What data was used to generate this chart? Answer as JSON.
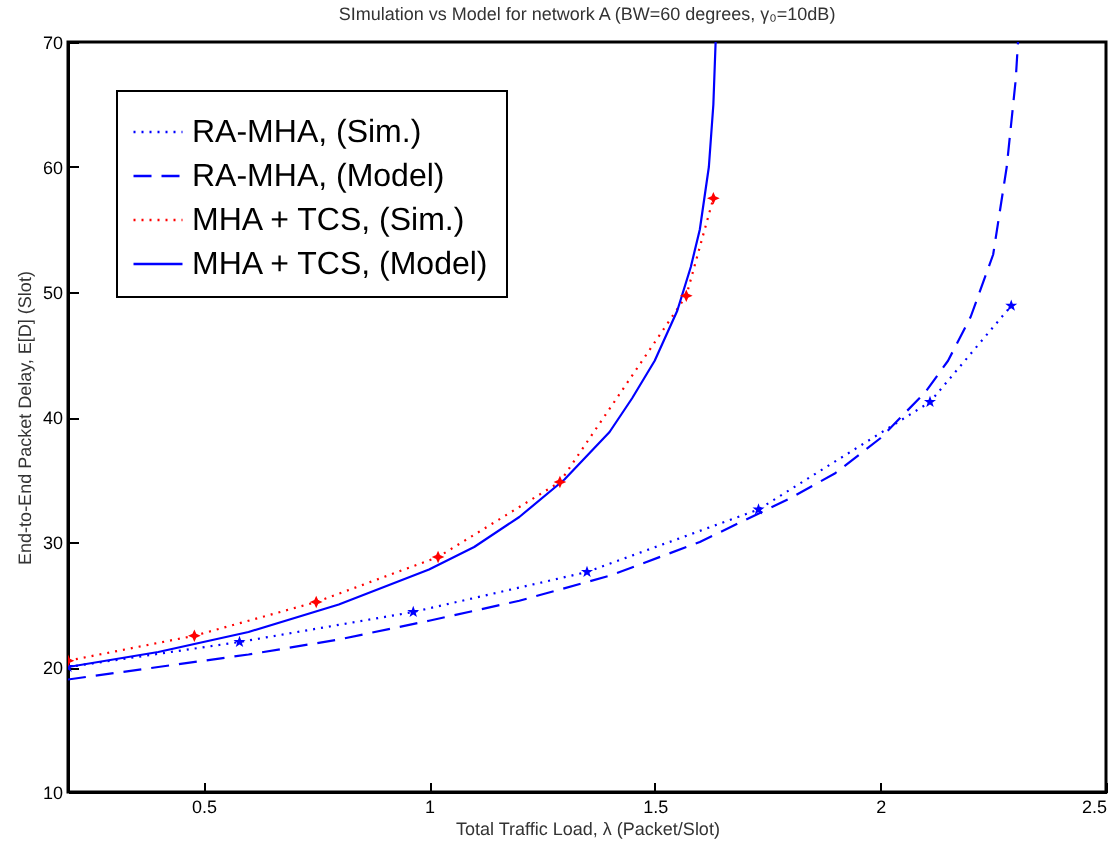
{
  "chart_data": {
    "type": "line",
    "title": "SImulation vs Model for network A (BW=60 degrees, γ₀=10dB)",
    "xlabel": "Total Traffic Load, λ (Packet/Slot)",
    "ylabel": "End-to-End Packet Delay, E[D] (Slot)",
    "xlim": [
      0.2,
      2.5
    ],
    "ylim": [
      10,
      70
    ],
    "xticks": [
      0.5,
      1,
      1.5,
      2,
      2.5
    ],
    "yticks": [
      10,
      20,
      30,
      40,
      50,
      60,
      70
    ],
    "legend": "top left",
    "grid": false,
    "series": [
      {
        "name": "RA-MHA, (Sim.)",
        "color": "#0000ff",
        "marker": "star",
        "line_style": "dotted",
        "x": [
          0.2,
          0.58,
          0.965,
          1.35,
          1.73,
          2.11,
          2.29
        ],
        "values": [
          20,
          22,
          24.4,
          27.6,
          32.6,
          41.2,
          48.9
        ]
      },
      {
        "name": "RA-MHA, (Model)",
        "color": "#0000ff",
        "marker": "none",
        "line_style": "dashed",
        "x": [
          0.2,
          0.4,
          0.6,
          0.8,
          1.0,
          1.2,
          1.4,
          1.6,
          1.8,
          1.9,
          2.0,
          2.1,
          2.15,
          2.2,
          2.25,
          2.28,
          2.3,
          2.305
        ],
        "values": [
          19,
          20,
          21,
          22.2,
          23.7,
          25.3,
          27.3,
          30,
          33.5,
          35.5,
          38.3,
          42,
          44.5,
          48,
          53,
          60,
          67,
          70
        ]
      },
      {
        "name": "MHA + TCS, (Sim.)",
        "color": "#ff0000",
        "marker": "diamond",
        "line_style": "dotted",
        "x": [
          0.2,
          0.48,
          0.75,
          1.02,
          1.29,
          1.57,
          1.63
        ],
        "values": [
          20.5,
          22.5,
          25.2,
          28.8,
          34.8,
          49.7,
          57.5
        ]
      },
      {
        "name": "MHA + TCS, (Model)",
        "color": "#0000ff",
        "marker": "none",
        "line_style": "solid",
        "x": [
          0.2,
          0.4,
          0.6,
          0.8,
          1.0,
          1.1,
          1.2,
          1.3,
          1.4,
          1.45,
          1.5,
          1.55,
          1.58,
          1.6,
          1.62,
          1.63,
          1.635
        ],
        "values": [
          20,
          21.2,
          22.8,
          25,
          27.8,
          29.6,
          32,
          35,
          38.8,
          41.5,
          44.5,
          48.5,
          52,
          55,
          60,
          65,
          70
        ]
      }
    ]
  }
}
